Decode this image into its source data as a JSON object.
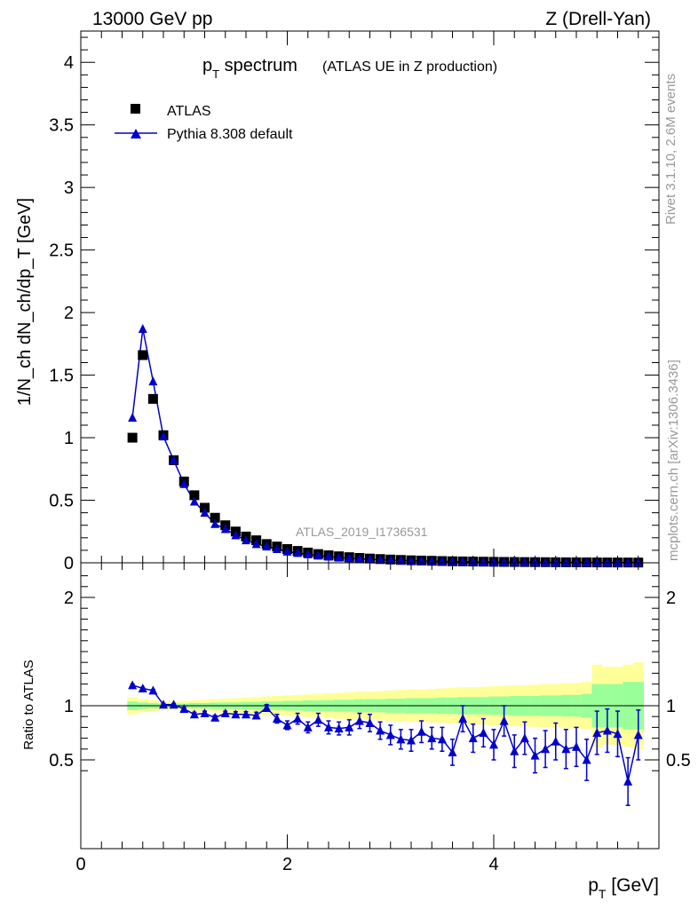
{
  "header": {
    "left": "13000 GeV pp",
    "right": "Z (Drell-Yan)"
  },
  "side_text": {
    "rivet": "Rivet 3.1.10,  2.6M events",
    "mcplots": "mcplots.cern.ch [arXiv:1306.3436]"
  },
  "colors": {
    "data": "#000000",
    "mc": "#0000cc",
    "band_inner": "#99ff99",
    "band_outer": "#ffff99"
  },
  "chart_data": [
    {
      "type": "scatter",
      "title_main": "p",
      "title_sub": "T",
      "title_rest": " spectrum",
      "title_note": "(ATLAS UE in Z production)",
      "analysis": "ATLAS_2019_I1736531",
      "ylabel": "1/N_ch dN_ch/dp_T [GeV]",
      "xlim": [
        0,
        5.6
      ],
      "ylim": [
        0,
        4.25
      ],
      "yticks": [
        "0",
        "0.5",
        "1",
        "1.5",
        "2",
        "2.5",
        "3",
        "3.5",
        "4"
      ],
      "legend_position": "top-left",
      "series": [
        {
          "name": "ATLAS",
          "marker": "square",
          "x": [
            0.5,
            0.6,
            0.7,
            0.8,
            0.9,
            1.0,
            1.1,
            1.2,
            1.3,
            1.4,
            1.5,
            1.6,
            1.7,
            1.8,
            1.9,
            2.0,
            2.1,
            2.2,
            2.3,
            2.4,
            2.5,
            2.6,
            2.7,
            2.8,
            2.9,
            3.0,
            3.1,
            3.2,
            3.3,
            3.4,
            3.5,
            3.6,
            3.7,
            3.8,
            3.9,
            4.0,
            4.1,
            4.2,
            4.3,
            4.4,
            4.5,
            4.6,
            4.7,
            4.8,
            4.9,
            5.0,
            5.1,
            5.2,
            5.3,
            5.4
          ],
          "values": [
            1.0,
            1.66,
            1.31,
            1.02,
            0.82,
            0.65,
            0.54,
            0.44,
            0.36,
            0.3,
            0.25,
            0.21,
            0.18,
            0.15,
            0.13,
            0.11,
            0.095,
            0.082,
            0.07,
            0.06,
            0.052,
            0.045,
            0.039,
            0.034,
            0.03,
            0.026,
            0.023,
            0.02,
            0.018,
            0.016,
            0.014,
            0.012,
            0.011,
            0.01,
            0.009,
            0.008,
            0.007,
            0.0065,
            0.006,
            0.0055,
            0.005,
            0.0045,
            0.004,
            0.0037,
            0.0034,
            0.003,
            0.0028,
            0.0025,
            0.0023,
            0.002
          ]
        },
        {
          "name": "Pythia 8.308 default",
          "marker": "triangle",
          "x": [
            0.5,
            0.6,
            0.7,
            0.8,
            0.9,
            1.0,
            1.1,
            1.2,
            1.3,
            1.4,
            1.5,
            1.6,
            1.7,
            1.8,
            1.9,
            2.0,
            2.1,
            2.2,
            2.3,
            2.4,
            2.5,
            2.6,
            2.7,
            2.8,
            2.9,
            3.0,
            3.1,
            3.2,
            3.3,
            3.4,
            3.5,
            3.6,
            3.7,
            3.8,
            3.9,
            4.0,
            4.1,
            4.2,
            4.3,
            4.4,
            4.5,
            4.6,
            4.7,
            4.8,
            4.9,
            5.0,
            5.1,
            5.2,
            5.3,
            5.4
          ],
          "values": [
            1.16,
            1.87,
            1.45,
            1.01,
            0.82,
            0.63,
            0.49,
            0.4,
            0.31,
            0.27,
            0.22,
            0.18,
            0.15,
            0.13,
            0.11,
            0.09,
            0.079,
            0.068,
            0.058,
            0.05,
            0.042,
            0.036,
            0.032,
            0.028,
            0.024,
            0.021,
            0.019,
            0.017,
            0.015,
            0.013,
            0.012,
            0.01,
            0.009,
            0.008,
            0.007,
            0.0066,
            0.0058,
            0.0052,
            0.0047,
            0.0043,
            0.0039,
            0.0035,
            0.0031,
            0.0028,
            0.0026,
            0.0023,
            0.0021,
            0.0019,
            0.0017,
            0.0015
          ]
        }
      ]
    },
    {
      "type": "line",
      "ylabel": "Ratio to ATLAS",
      "xlabel_main": "p",
      "xlabel_sub": "T",
      "xlabel_rest": " [GeV]",
      "xlim": [
        0,
        5.6
      ],
      "ylim": [
        0.33,
        2.33
      ],
      "xticks": [
        "0",
        "2",
        "4"
      ],
      "yticks_left": [
        "0.5",
        "1",
        "2"
      ],
      "yticks_right": [
        "0.5",
        "1",
        "2"
      ],
      "reference_line": 1,
      "band_edges": [
        0.45,
        0.55,
        0.65,
        0.75,
        0.85,
        0.95,
        1.05,
        1.15,
        1.25,
        1.35,
        1.45,
        1.55,
        1.65,
        1.75,
        1.85,
        1.95,
        2.05,
        2.15,
        2.25,
        2.35,
        2.45,
        2.55,
        2.65,
        2.75,
        2.85,
        2.95,
        3.05,
        3.15,
        3.25,
        3.35,
        3.45,
        3.55,
        3.65,
        3.75,
        3.85,
        3.95,
        4.05,
        4.15,
        4.25,
        4.35,
        4.45,
        4.55,
        4.65,
        4.75,
        4.85,
        4.95,
        5.05,
        5.15,
        5.25,
        5.35,
        5.45
      ],
      "band_inner_halfwidth": [
        0.04,
        0.03,
        0.025,
        0.02,
        0.02,
        0.02,
        0.025,
        0.025,
        0.03,
        0.03,
        0.03,
        0.035,
        0.035,
        0.04,
        0.04,
        0.045,
        0.045,
        0.05,
        0.05,
        0.05,
        0.055,
        0.055,
        0.06,
        0.06,
        0.06,
        0.065,
        0.065,
        0.07,
        0.07,
        0.07,
        0.075,
        0.075,
        0.08,
        0.08,
        0.08,
        0.085,
        0.085,
        0.09,
        0.09,
        0.09,
        0.095,
        0.095,
        0.1,
        0.1,
        0.11,
        0.2,
        0.2,
        0.2,
        0.22,
        0.22
      ],
      "band_outer_halfwidth": [
        0.08,
        0.06,
        0.05,
        0.04,
        0.04,
        0.045,
        0.05,
        0.055,
        0.06,
        0.065,
        0.07,
        0.075,
        0.08,
        0.085,
        0.09,
        0.095,
        0.1,
        0.105,
        0.11,
        0.115,
        0.12,
        0.125,
        0.13,
        0.13,
        0.135,
        0.14,
        0.145,
        0.15,
        0.15,
        0.155,
        0.16,
        0.165,
        0.17,
        0.17,
        0.175,
        0.18,
        0.185,
        0.19,
        0.19,
        0.195,
        0.2,
        0.2,
        0.21,
        0.21,
        0.22,
        0.38,
        0.36,
        0.36,
        0.38,
        0.4
      ],
      "series": [
        {
          "name": "Pythia 8.308 default",
          "x": [
            0.5,
            0.6,
            0.7,
            0.8,
            0.9,
            1.0,
            1.1,
            1.2,
            1.3,
            1.4,
            1.5,
            1.6,
            1.7,
            1.8,
            1.9,
            2.0,
            2.1,
            2.2,
            2.3,
            2.4,
            2.5,
            2.6,
            2.7,
            2.8,
            2.9,
            3.0,
            3.1,
            3.2,
            3.3,
            3.4,
            3.5,
            3.6,
            3.7,
            3.8,
            3.9,
            4.0,
            4.1,
            4.2,
            4.3,
            4.4,
            4.5,
            4.6,
            4.7,
            4.8,
            4.9,
            5.0,
            5.1,
            5.2,
            5.3,
            5.4
          ],
          "values": [
            1.19,
            1.16,
            1.14,
            1.01,
            1.01,
            0.97,
            0.92,
            0.93,
            0.89,
            0.93,
            0.92,
            0.92,
            0.91,
            0.98,
            0.88,
            0.82,
            0.88,
            0.8,
            0.87,
            0.8,
            0.79,
            0.8,
            0.86,
            0.84,
            0.77,
            0.73,
            0.69,
            0.68,
            0.76,
            0.7,
            0.69,
            0.57,
            0.88,
            0.7,
            0.75,
            0.64,
            0.86,
            0.58,
            0.7,
            0.54,
            0.6,
            0.67,
            0.6,
            0.62,
            0.5,
            0.75,
            0.77,
            0.74,
            0.3,
            0.73
          ],
          "err": [
            0.01,
            0.01,
            0.01,
            0.01,
            0.01,
            0.015,
            0.02,
            0.02,
            0.02,
            0.02,
            0.025,
            0.025,
            0.03,
            0.03,
            0.04,
            0.04,
            0.05,
            0.05,
            0.06,
            0.06,
            0.06,
            0.07,
            0.07,
            0.08,
            0.08,
            0.09,
            0.09,
            0.1,
            0.1,
            0.1,
            0.11,
            0.12,
            0.12,
            0.13,
            0.13,
            0.14,
            0.14,
            0.15,
            0.15,
            0.16,
            0.17,
            0.17,
            0.18,
            0.18,
            0.19,
            0.2,
            0.2,
            0.21,
            0.22,
            0.23
          ]
        }
      ]
    }
  ]
}
